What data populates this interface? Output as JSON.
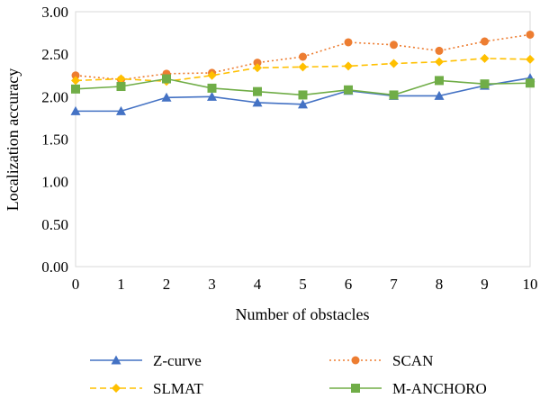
{
  "chart_data": {
    "type": "line",
    "title": "",
    "xlabel": "Number of obstacles",
    "ylabel": "Localization accuracy",
    "x": [
      0,
      1,
      2,
      3,
      4,
      5,
      6,
      7,
      8,
      9,
      10
    ],
    "xticks": [
      "0",
      "1",
      "2",
      "3",
      "4",
      "5",
      "6",
      "7",
      "8",
      "9",
      "10"
    ],
    "yticks": [
      "0.00",
      "0.50",
      "1.00",
      "1.50",
      "2.00",
      "2.50",
      "3.00"
    ],
    "xlim": [
      0,
      10
    ],
    "ylim": [
      0,
      3
    ],
    "grid": false,
    "legend_position": "bottom",
    "series": [
      {
        "name": "Z-curve",
        "color": "#4472c4",
        "marker": "triangle",
        "dash": "solid",
        "values": [
          1.83,
          1.83,
          1.99,
          2.0,
          1.93,
          1.91,
          2.07,
          2.01,
          2.01,
          2.13,
          2.22
        ]
      },
      {
        "name": "SCAN",
        "color": "#ed7d31",
        "marker": "circle",
        "dash": "dotted",
        "values": [
          2.25,
          2.2,
          2.27,
          2.28,
          2.4,
          2.47,
          2.64,
          2.61,
          2.54,
          2.65,
          2.73
        ]
      },
      {
        "name": "SLMAT",
        "color": "#ffc000",
        "marker": "diamond",
        "dash": "dashed",
        "values": [
          2.19,
          2.21,
          2.18,
          2.25,
          2.34,
          2.35,
          2.36,
          2.39,
          2.41,
          2.45,
          2.44
        ]
      },
      {
        "name": "M-ANCHORO",
        "color": "#70ad47",
        "marker": "square",
        "dash": "solid",
        "values": [
          2.09,
          2.12,
          2.21,
          2.1,
          2.06,
          2.02,
          2.08,
          2.02,
          2.19,
          2.15,
          2.16
        ]
      }
    ]
  }
}
